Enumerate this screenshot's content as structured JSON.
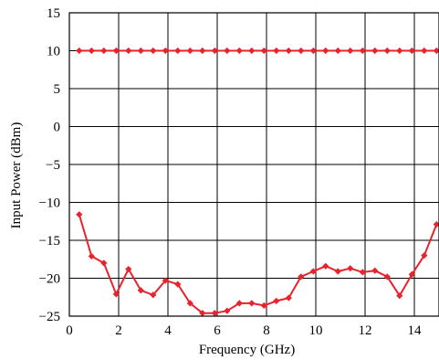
{
  "chart_data": {
    "type": "line",
    "title": "",
    "xlabel": "Frequency (GHz)",
    "ylabel": "Input Power (dBm)",
    "xlim": [
      0,
      15
    ],
    "ylim": [
      -25,
      15
    ],
    "xticks": [
      0,
      2,
      4,
      6,
      8,
      10,
      12,
      14
    ],
    "yticks": [
      15,
      10,
      5,
      0,
      -5,
      -10,
      -15,
      -20,
      -25
    ],
    "xtick_labels": [
      "0",
      "2",
      "4",
      "6",
      "8",
      "10",
      "12",
      "14"
    ],
    "ytick_labels": [
      "15",
      "10",
      "5",
      "0",
      "−5",
      "−10",
      "−15",
      "−20",
      "−25"
    ],
    "grid": true,
    "legend": "none",
    "series": [
      {
        "color": "#e8232b",
        "marker": "diamond",
        "x": [
          0.4,
          0.9,
          1.4,
          1.9,
          2.4,
          2.9,
          3.4,
          3.9,
          4.4,
          4.9,
          5.4,
          5.9,
          6.4,
          6.9,
          7.4,
          7.9,
          8.4,
          8.9,
          9.4,
          9.9,
          10.4,
          10.9,
          11.4,
          11.9,
          12.4,
          12.9,
          13.4,
          13.9,
          14.4,
          14.9
        ],
        "y": [
          10,
          10,
          10,
          10,
          10,
          10,
          10,
          10,
          10,
          10,
          10,
          10,
          10,
          10,
          10,
          10,
          10,
          10,
          10,
          10,
          10,
          10,
          10,
          10,
          10,
          10,
          10,
          10,
          10,
          10
        ]
      },
      {
        "color": "#e8232b",
        "marker": "diamond",
        "x": [
          0.4,
          0.9,
          1.4,
          1.9,
          2.4,
          2.9,
          3.4,
          3.9,
          4.4,
          4.9,
          5.4,
          5.9,
          6.4,
          6.9,
          7.4,
          7.9,
          8.4,
          8.9,
          9.4,
          9.9,
          10.4,
          10.9,
          11.4,
          11.9,
          12.4,
          12.9,
          13.4,
          13.9,
          14.4,
          14.9
        ],
        "y": [
          -11.6,
          -17.1,
          -18.0,
          -22.1,
          -18.8,
          -21.6,
          -22.2,
          -20.3,
          -20.8,
          -23.3,
          -24.6,
          -24.6,
          -24.3,
          -23.3,
          -23.3,
          -23.6,
          -23.0,
          -22.6,
          -19.8,
          -19.1,
          -18.4,
          -19.1,
          -18.7,
          -19.2,
          -19.0,
          -19.8,
          -22.3,
          -19.5,
          -17.0,
          -12.9
        ]
      }
    ]
  }
}
